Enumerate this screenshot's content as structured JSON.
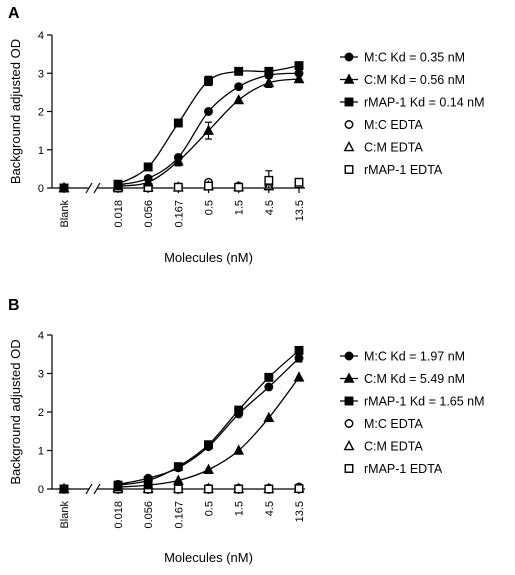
{
  "chart_data": [
    {
      "panel": "A",
      "type": "scatter",
      "xlabel": "Molecules (nM)",
      "ylabel": "Background adjusted OD",
      "x_categories": [
        "Blank",
        "0.018",
        "0.056",
        "0.167",
        "0.5",
        "1.5",
        "4.5",
        "13.5"
      ],
      "ylim": [
        0,
        4
      ],
      "yticks": [
        "0",
        "1",
        "2",
        "3",
        "4"
      ],
      "legend_position": "right",
      "series": [
        {
          "name": "M:C Kd = 0.35 nM",
          "marker": "circle-filled",
          "fit": true,
          "blank": 0.0,
          "values": [
            0.08,
            0.25,
            0.8,
            2.0,
            2.65,
            2.95,
            3.0
          ],
          "errors": [
            0,
            0,
            0,
            0,
            0,
            0,
            0
          ]
        },
        {
          "name": "C:M Kd = 0.56 nM",
          "marker": "triangle-filled",
          "fit": true,
          "blank": 0.0,
          "values": [
            0.05,
            0.15,
            0.7,
            1.5,
            2.3,
            2.75,
            2.85
          ],
          "errors": [
            0,
            0.05,
            0.12,
            0.22,
            0,
            0.12,
            0
          ]
        },
        {
          "name": "rMAP-1 Kd = 0.14 nM",
          "marker": "square-filled",
          "fit": true,
          "blank": 0.0,
          "values": [
            0.1,
            0.55,
            1.7,
            2.8,
            3.05,
            3.05,
            3.2
          ],
          "errors": [
            0,
            0,
            0.07,
            0.12,
            0,
            0,
            0
          ]
        },
        {
          "name": "M:C EDTA",
          "marker": "circle-open",
          "fit": false,
          "blank": 0.0,
          "values": [
            0.02,
            0.03,
            0.03,
            0.15,
            0.05,
            0.08,
            0.15
          ],
          "errors": [
            0,
            0,
            0,
            0,
            0,
            0,
            0
          ]
        },
        {
          "name": "C:M EDTA",
          "marker": "triangle-open",
          "fit": false,
          "blank": 0.0,
          "values": [
            0.02,
            0.02,
            0.02,
            0.05,
            0.03,
            0.05,
            0.1
          ],
          "errors": [
            0,
            0,
            0,
            0,
            0,
            0,
            0
          ]
        },
        {
          "name": "rMAP-1 EDTA",
          "marker": "square-open",
          "fit": false,
          "blank": 0.0,
          "values": [
            0.0,
            0.01,
            0.02,
            0.05,
            0.02,
            0.2,
            0.15
          ],
          "errors": [
            0,
            0,
            0,
            0,
            0,
            0.25,
            0
          ]
        }
      ]
    },
    {
      "panel": "B",
      "type": "scatter",
      "xlabel": "Molecules (nM)",
      "ylabel": "Background adjusted OD",
      "x_categories": [
        "Blank",
        "0.018",
        "0.056",
        "0.167",
        "0.5",
        "1.5",
        "4.5",
        "13.5"
      ],
      "ylim": [
        0,
        4
      ],
      "yticks": [
        "0",
        "1",
        "2",
        "3",
        "4"
      ],
      "legend_position": "right",
      "series": [
        {
          "name": "M:C Kd = 1.97 nM",
          "marker": "circle-filled",
          "fit": true,
          "blank": 0.0,
          "values": [
            0.12,
            0.28,
            0.55,
            1.1,
            1.95,
            2.65,
            3.4
          ],
          "errors": [
            0,
            0,
            0,
            0,
            0,
            0,
            0.1
          ]
        },
        {
          "name": "C:M Kd = 5.49 nM",
          "marker": "triangle-filled",
          "fit": true,
          "blank": 0.0,
          "values": [
            0.05,
            0.1,
            0.22,
            0.5,
            1.0,
            1.85,
            2.9
          ],
          "errors": [
            0,
            0,
            0,
            0,
            0,
            0,
            0
          ]
        },
        {
          "name": "rMAP-1 Kd = 1.65 nM",
          "marker": "square-filled",
          "fit": true,
          "blank": 0.0,
          "values": [
            0.1,
            0.22,
            0.58,
            1.15,
            2.05,
            2.9,
            3.6
          ],
          "errors": [
            0,
            0,
            0,
            0,
            0,
            0,
            0
          ]
        },
        {
          "name": "M:C EDTA",
          "marker": "circle-open",
          "fit": false,
          "blank": 0.0,
          "values": [
            0.02,
            0.02,
            0.02,
            0.02,
            0.02,
            0.02,
            0.05
          ],
          "errors": [
            0,
            0,
            0,
            0,
            0,
            0,
            0
          ]
        },
        {
          "name": "C:M EDTA",
          "marker": "triangle-open",
          "fit": false,
          "blank": 0.0,
          "values": [
            0.01,
            0.01,
            0.01,
            0.01,
            0.01,
            0.01,
            0.02
          ],
          "errors": [
            0,
            0,
            0,
            0,
            0,
            0,
            0
          ]
        },
        {
          "name": "rMAP-1 EDTA",
          "marker": "square-open",
          "fit": false,
          "blank": 0.0,
          "values": [
            0.0,
            0.0,
            0.0,
            0.0,
            0.0,
            0.0,
            0.01
          ],
          "errors": [
            0,
            0,
            0,
            0,
            0,
            0,
            0
          ]
        }
      ]
    }
  ]
}
